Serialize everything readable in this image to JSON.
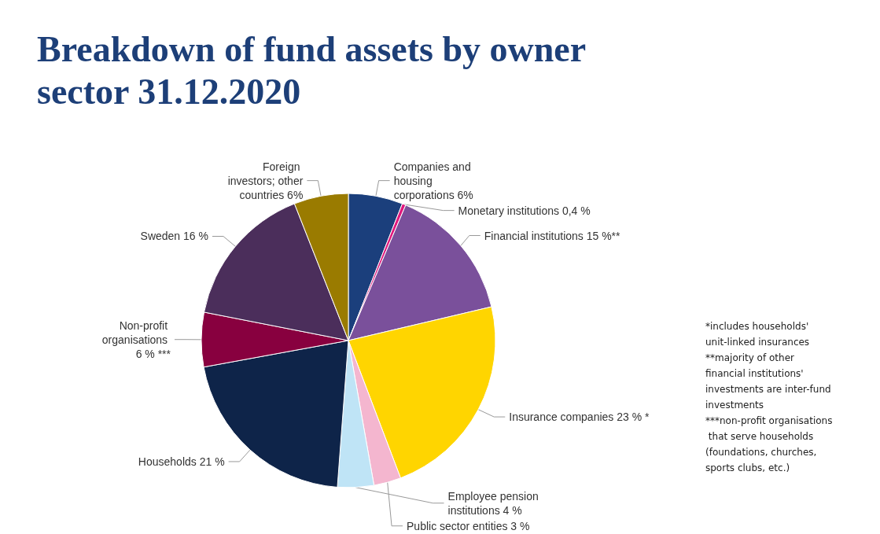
{
  "chart_data": {
    "type": "pie",
    "title": "Breakdown of fund assets by owner sector 31.12.2020",
    "categories": [
      "Companies and housing corporations",
      "Monetary institutions",
      "Financial institutions",
      "Insurance companies",
      "Public sector entities",
      "Employee pension institutions",
      "Households",
      "Non-profit organisations",
      "Sweden",
      "Foreign investors; other countries"
    ],
    "values": [
      6,
      0.4,
      15,
      23,
      3,
      4,
      21,
      6,
      16,
      6
    ],
    "value_labels": [
      "6%",
      "0,4 %",
      "15 %**",
      "23 % *",
      "3 %",
      "4 %",
      "21 %",
      "6 % ***",
      "16 %",
      "6%"
    ],
    "colors": [
      "#1b3f7c",
      "#e0197d",
      "#7a509b",
      "#ffd500",
      "#f4b6cf",
      "#bfe4f6",
      "#0e2449",
      "#88003f",
      "#4b2e5b",
      "#9a7b00"
    ],
    "legend": false,
    "annotations": [
      "*includes households' unit-linked insurances",
      "**majority of other financial institutions' investments are inter-fund investments",
      "***non-profit organisations that serve households (foundations, churches, sports clubs, etc.)"
    ]
  }
}
